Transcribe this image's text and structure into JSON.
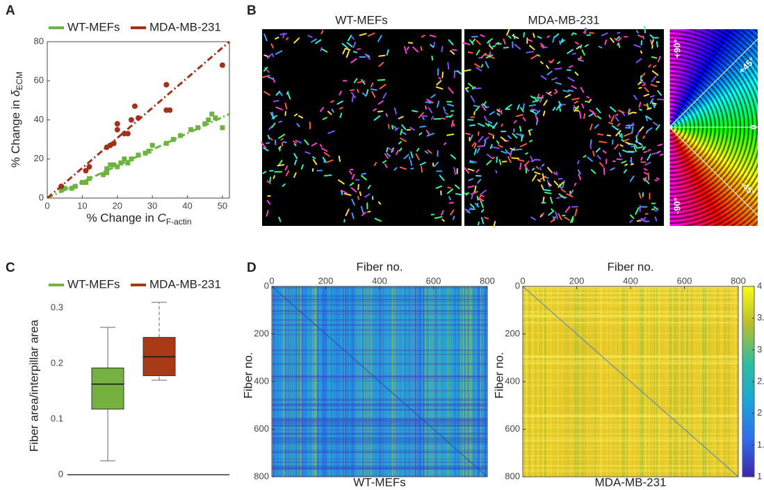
{
  "panel_labels": [
    "A",
    "B",
    "C",
    "D"
  ],
  "panel_b": {
    "titles": [
      "WT-MEFs",
      "MDA-MB-231"
    ],
    "wheel_labels": [
      "+90°",
      "+45°",
      "0",
      "-45°",
      "-90°"
    ]
  },
  "chart_data": [
    {
      "type": "scatter",
      "x_label": {
        "text": "% Change in ",
        "symbol": "C",
        "subscript": "F-actin"
      },
      "y_label": {
        "text": "% Change in ",
        "symbol": "δ",
        "subscript": "ECM"
      },
      "xlim": [
        0,
        52
      ],
      "ylim": [
        0,
        80
      ],
      "xticks": [
        0,
        10,
        20,
        30,
        40,
        50
      ],
      "yticks": [
        0,
        20,
        40,
        60,
        80
      ],
      "series": [
        {
          "name": "WT-MEFs",
          "color": "#6db33f",
          "marker": "square",
          "x": [
            4,
            5,
            7,
            8,
            10,
            11,
            12,
            16,
            17,
            17,
            18,
            19,
            20,
            21,
            22,
            23,
            24,
            26,
            28,
            29,
            30,
            34,
            36,
            38,
            41,
            43,
            45,
            46,
            47,
            48,
            50
          ],
          "values": [
            4,
            5,
            5,
            6,
            8,
            8,
            10,
            12,
            13,
            15,
            17,
            17,
            16,
            18,
            20,
            18,
            20,
            22,
            23,
            24,
            27,
            28,
            30,
            32,
            35,
            36,
            38,
            40,
            43,
            41,
            36
          ],
          "fit_line": {
            "x": [
              0,
              52
            ],
            "values": [
              0,
              43
            ]
          }
        },
        {
          "name": "MDA-MB-231",
          "color": "#a0321a",
          "marker": "circle",
          "x": [
            4,
            11,
            12,
            17,
            18,
            19,
            20,
            20,
            22,
            23,
            24,
            25,
            26,
            34,
            34,
            35,
            50
          ],
          "values": [
            6,
            14,
            16,
            26,
            27,
            28,
            38,
            35,
            33,
            33,
            40,
            47,
            41,
            58,
            45,
            45,
            68
          ],
          "fit_line": {
            "x": [
              0,
              52
            ],
            "values": [
              0,
              80
            ]
          }
        }
      ]
    },
    {
      "type": "box",
      "y_label": "Fiber area/interpillar area",
      "ylim": [
        0,
        0.32
      ],
      "yticks": [
        0,
        0.1,
        0.2,
        0.3
      ],
      "series": [
        {
          "name": "WT-MEFs",
          "color": "#76b041",
          "min": 0.025,
          "q1": 0.118,
          "median": 0.163,
          "q3": 0.192,
          "max": 0.265
        },
        {
          "name": "MDA-MB-231",
          "color": "#a83a16",
          "min": 0.17,
          "q1": 0.178,
          "median": 0.212,
          "q3": 0.247,
          "max": 0.31
        }
      ]
    },
    {
      "type": "heatmap",
      "title": "Fiber no.",
      "y_label": "Fiber no.",
      "caption": "WT-MEFs",
      "xlim": [
        0,
        800
      ],
      "ylim": [
        0,
        800
      ],
      "xticks": [
        0,
        200,
        400,
        600,
        800
      ],
      "yticks": [
        0,
        200,
        400,
        600,
        800
      ]
    },
    {
      "type": "heatmap",
      "title": "Fiber no.",
      "y_label": "Fiber no.",
      "caption": "MDA-MB-231",
      "xlim": [
        0,
        800
      ],
      "ylim": [
        0,
        800
      ],
      "xticks": [
        0,
        200,
        400,
        600,
        800
      ],
      "yticks": [
        0,
        200,
        400,
        600,
        800
      ],
      "colorbar": {
        "lim": [
          1,
          4
        ],
        "ticks": [
          1,
          {
            "value": 1.5,
            "label": "1."
          },
          2,
          {
            "value": 2.5,
            "label": "2."
          },
          3,
          {
            "value": 3.5,
            "label": "3."
          },
          4
        ]
      }
    }
  ]
}
